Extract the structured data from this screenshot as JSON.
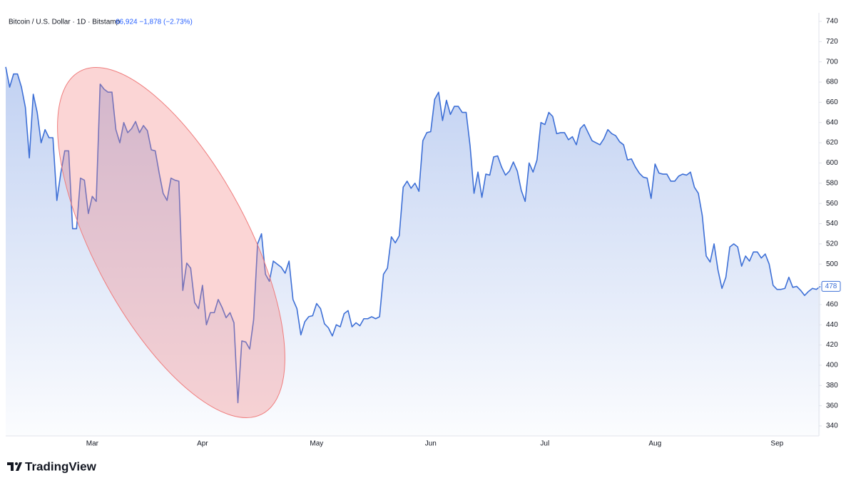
{
  "chart_data": {
    "type": "line",
    "title": "Bitcoin / U.S. Dollar · 1D · Bitstamp",
    "subtitle": "66,924 −1,878 (−2.73%)",
    "color": "#3d6fd6",
    "grid": false,
    "ylim": [
      340,
      740
    ],
    "yticks": [
      340,
      360,
      380,
      400,
      420,
      440,
      460,
      480,
      500,
      520,
      540,
      560,
      580,
      600,
      620,
      640,
      660,
      680,
      700,
      720,
      740
    ],
    "last_value": 478,
    "categories": [
      null,
      null,
      null,
      null,
      null,
      null,
      null,
      null,
      null,
      null,
      null,
      null,
      null,
      null,
      null,
      null,
      null,
      null,
      null,
      null,
      null,
      null,
      "Mar",
      null,
      null,
      null,
      null,
      null,
      null,
      null,
      null,
      null,
      null,
      null,
      null,
      null,
      null,
      null,
      null,
      null,
      null,
      null,
      null,
      null,
      null,
      null,
      null,
      null,
      null,
      null,
      "Apr",
      null,
      null,
      null,
      null,
      null,
      null,
      null,
      null,
      null,
      null,
      null,
      null,
      null,
      null,
      null,
      null,
      null,
      null,
      null,
      null,
      null,
      null,
      null,
      null,
      null,
      null,
      null,
      null,
      "May",
      null,
      null,
      null,
      null,
      null,
      null,
      null,
      null,
      null,
      null,
      null,
      null,
      null,
      null,
      null,
      null,
      null,
      null,
      null,
      null,
      null,
      null,
      null,
      null,
      null,
      null,
      null,
      null,
      "Jun",
      null,
      null,
      null,
      null,
      null,
      null,
      null,
      null,
      null,
      null,
      null,
      null,
      null,
      null,
      null,
      null,
      null,
      null,
      null,
      null,
      null,
      null,
      null,
      null,
      null,
      null,
      null,
      null,
      "Jul",
      null,
      null,
      null,
      null,
      null,
      null,
      null,
      null,
      null,
      null,
      null,
      null,
      null,
      null,
      null,
      null,
      null,
      null,
      null,
      null,
      null,
      null,
      null,
      null,
      null,
      null,
      null,
      "Aug",
      null,
      null,
      null,
      null,
      null,
      null,
      null,
      null,
      null,
      null,
      null,
      null,
      null,
      null,
      null,
      null,
      null,
      null,
      null,
      null,
      null,
      null,
      null,
      null,
      null,
      null,
      null,
      null,
      null,
      null,
      "Sep",
      null,
      null,
      null,
      null,
      null,
      null,
      null,
      null,
      null,
      null,
      null
    ],
    "values": [
      695,
      675,
      688,
      688,
      675,
      655,
      605,
      668,
      650,
      620,
      633,
      625,
      625,
      563,
      590,
      612,
      612,
      535,
      535,
      585,
      583,
      550,
      567,
      562,
      678,
      673,
      670,
      670,
      633,
      620,
      640,
      630,
      634,
      641,
      630,
      637,
      632,
      613,
      612,
      590,
      570,
      563,
      585,
      583,
      582,
      474,
      501,
      496,
      462,
      456,
      479,
      440,
      452,
      452,
      465,
      457,
      447,
      452,
      442,
      363,
      424,
      423,
      416,
      445,
      520,
      530,
      490,
      483,
      503,
      500,
      497,
      491,
      503,
      465,
      456,
      430,
      443,
      448,
      449,
      461,
      456,
      441,
      437,
      429,
      440,
      438,
      451,
      454,
      438,
      442,
      439,
      446,
      446,
      448,
      446,
      448,
      490,
      496,
      527,
      521,
      528,
      576,
      582,
      575,
      580,
      572,
      622,
      630,
      631,
      663,
      670,
      642,
      662,
      648,
      656,
      656,
      650,
      650,
      617,
      570,
      591,
      566,
      589,
      588,
      606,
      607,
      596,
      588,
      592,
      601,
      592,
      573,
      562,
      600,
      591,
      603,
      640,
      638,
      650,
      646,
      629,
      630,
      630,
      623,
      626,
      618,
      634,
      638,
      630,
      622,
      620,
      618,
      624,
      633,
      629,
      627,
      621,
      618,
      603,
      604,
      596,
      590,
      586,
      585,
      565,
      599,
      590,
      589,
      589,
      582,
      582,
      587,
      589,
      588,
      591,
      576,
      570,
      548,
      508,
      502,
      520,
      494,
      476,
      487,
      517,
      520,
      517,
      498,
      508,
      503,
      512,
      512,
      506,
      510,
      500,
      479,
      475,
      475,
      476,
      487,
      477,
      478,
      474,
      469,
      473,
      476,
      475,
      478
    ]
  },
  "branding": "TradingView"
}
